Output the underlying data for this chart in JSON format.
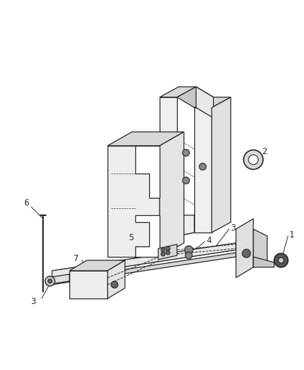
{
  "bg_color": "#ffffff",
  "lc": "#444444",
  "dc": "#222222",
  "gray1": "#bbbbbb",
  "gray2": "#d8d8d8",
  "gray3": "#eeeeee",
  "fig_width": 4.38,
  "fig_height": 5.33,
  "dpi": 100
}
